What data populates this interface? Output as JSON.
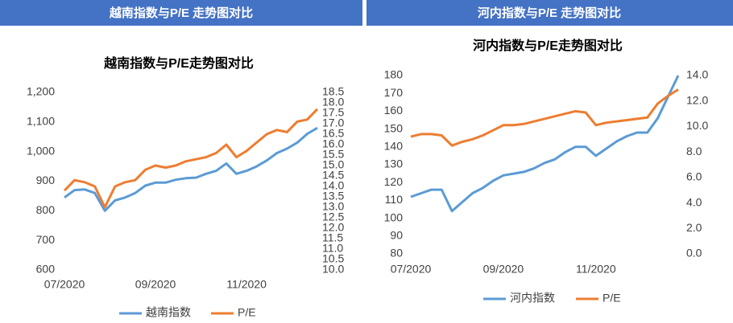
{
  "chart_data": [
    {
      "type": "line",
      "header": "越南指数与P/E 走势图对比",
      "title": "越南指数与P/E走势图对比",
      "categories": [
        "07/2020",
        null,
        null,
        null,
        null,
        null,
        null,
        null,
        null,
        "09/2020",
        null,
        null,
        null,
        null,
        null,
        null,
        null,
        null,
        "11/2020",
        null,
        null,
        null,
        null,
        null,
        null,
        null
      ],
      "series": [
        {
          "name": "越南指数",
          "color": "#5b9bd5",
          "values": [
            845,
            870,
            872,
            860,
            800,
            835,
            845,
            860,
            885,
            895,
            895,
            905,
            910,
            912,
            925,
            935,
            960,
            925,
            935,
            950,
            970,
            995,
            1010,
            1030,
            1060,
            1080
          ]
        },
        {
          "name": "P/E",
          "color": "#ed7d31",
          "axis": "y2",
          "values": [
            13.8,
            14.3,
            14.2,
            14.0,
            13.0,
            14.0,
            14.2,
            14.3,
            14.8,
            15.0,
            14.9,
            15.0,
            15.2,
            15.3,
            15.4,
            15.6,
            16.0,
            15.4,
            15.7,
            16.1,
            16.5,
            16.7,
            16.6,
            17.1,
            17.2,
            17.7
          ]
        }
      ],
      "ylim": [
        600,
        1200
      ],
      "yticks": [
        600,
        700,
        800,
        900,
        {
          "value": 1000,
          "label": "1,000"
        },
        {
          "value": 1100,
          "label": "1,100"
        },
        {
          "value": 1200,
          "label": "1,200"
        }
      ],
      "y2lim": [
        10,
        18.5
      ],
      "y2ticks": [
        {
          "value": 10,
          "label": "10.0"
        },
        10.5,
        {
          "value": 11,
          "label": "11.0"
        },
        11.5,
        {
          "value": 12,
          "label": "12.0"
        },
        12.5,
        {
          "value": 13,
          "label": "13.0"
        },
        13.5,
        {
          "value": 14,
          "label": "14.0"
        },
        14.5,
        {
          "value": 15,
          "label": "15.0"
        },
        15.5,
        {
          "value": 16,
          "label": "16.0"
        },
        16.5,
        {
          "value": 17,
          "label": "17.0"
        },
        17.5,
        {
          "value": 18,
          "label": "18.0"
        },
        18.5
      ],
      "legend": "bottom"
    },
    {
      "type": "line",
      "header": "河内指数与P/E 走势图对比",
      "title": "河内指数与P/E走势图对比",
      "categories": [
        "07/2020",
        null,
        null,
        null,
        null,
        null,
        null,
        null,
        null,
        "09/2020",
        null,
        null,
        null,
        null,
        null,
        null,
        null,
        null,
        "11/2020",
        null,
        null,
        null,
        null,
        null,
        null,
        null,
        null
      ],
      "series": [
        {
          "name": "河内指数",
          "color": "#5b9bd5",
          "values": [
            112,
            114,
            116,
            116,
            104,
            109,
            114,
            117,
            121,
            124,
            125,
            126,
            128,
            131,
            133,
            137,
            140,
            140,
            135,
            139,
            143,
            146,
            148,
            148,
            156,
            168,
            180
          ]
        },
        {
          "name": "P/E",
          "color": "#ed7d31",
          "axis": "y2",
          "values": [
            9.2,
            9.4,
            9.4,
            9.3,
            8.5,
            8.8,
            9.0,
            9.3,
            9.7,
            10.1,
            10.1,
            10.2,
            10.4,
            10.6,
            10.8,
            11.0,
            11.2,
            11.1,
            10.1,
            10.3,
            10.4,
            10.5,
            10.6,
            10.7,
            11.8,
            12.4,
            12.9
          ]
        }
      ],
      "ylim": [
        80,
        180
      ],
      "yticks": [
        80,
        90,
        100,
        110,
        120,
        130,
        140,
        150,
        160,
        170,
        180
      ],
      "y2lim": [
        0,
        14
      ],
      "y2ticks": [
        {
          "value": 0,
          "label": "0.0"
        },
        {
          "value": 2,
          "label": "2.0"
        },
        {
          "value": 4,
          "label": "4.0"
        },
        {
          "value": 6,
          "label": "6.0"
        },
        {
          "value": 8,
          "label": "8.0"
        },
        {
          "value": 10,
          "label": "10.0"
        },
        {
          "value": 12,
          "label": "12.0"
        },
        {
          "value": 14,
          "label": "14.0"
        }
      ],
      "legend": "bottom"
    }
  ]
}
